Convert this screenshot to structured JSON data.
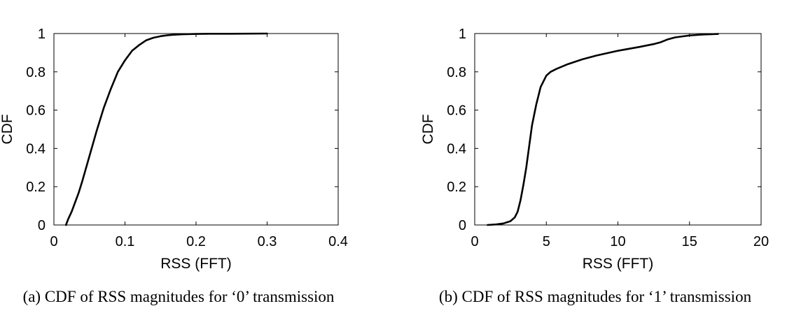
{
  "chart_data": [
    {
      "type": "line",
      "title": "",
      "caption": "(a)  CDF of RSS magnitudes for ‘0’ transmission",
      "xlabel": "RSS (FFT)",
      "ylabel": "CDF",
      "xlim": [
        0,
        0.4
      ],
      "ylim": [
        0,
        1
      ],
      "xticks": [
        "0",
        "0.1",
        "0.2",
        "0.3",
        "0.4"
      ],
      "yticks": [
        "0",
        "0.2",
        "0.4",
        "0.6",
        "0.8",
        "1"
      ],
      "grid": false,
      "line_color": "#000000",
      "x": [
        0.017,
        0.018,
        0.02,
        0.025,
        0.03,
        0.035,
        0.04,
        0.05,
        0.06,
        0.07,
        0.08,
        0.09,
        0.1,
        0.11,
        0.12,
        0.13,
        0.14,
        0.15,
        0.16,
        0.17,
        0.18,
        0.19,
        0.2,
        0.22,
        0.25,
        0.3
      ],
      "y": [
        0.0,
        0.01,
        0.03,
        0.07,
        0.12,
        0.17,
        0.23,
        0.36,
        0.49,
        0.61,
        0.71,
        0.8,
        0.86,
        0.91,
        0.94,
        0.965,
        0.978,
        0.986,
        0.991,
        0.994,
        0.996,
        0.997,
        0.998,
        0.999,
        0.999,
        1.0
      ]
    },
    {
      "type": "line",
      "title": "",
      "caption": "(b)  CDF of RSS magnitudes for ‘1’ transmission",
      "xlabel": "RSS (FFT)",
      "ylabel": "CDF",
      "xlim": [
        0,
        20
      ],
      "ylim": [
        0,
        1
      ],
      "xticks": [
        "0",
        "5",
        "10",
        "15",
        "20"
      ],
      "yticks": [
        "0",
        "0.2",
        "0.4",
        "0.6",
        "0.8",
        "1"
      ],
      "grid": false,
      "line_color": "#000000",
      "x": [
        0.9,
        1.5,
        2.0,
        2.5,
        2.8,
        3.0,
        3.2,
        3.4,
        3.6,
        3.8,
        4.0,
        4.3,
        4.6,
        5.0,
        5.3,
        5.7,
        6.5,
        7.5,
        8.5,
        10.0,
        11.5,
        12.5,
        13.0,
        13.5,
        14.0,
        15.0,
        16.0,
        17.0
      ],
      "y": [
        0.0,
        0.003,
        0.008,
        0.02,
        0.04,
        0.07,
        0.13,
        0.21,
        0.3,
        0.41,
        0.52,
        0.63,
        0.72,
        0.78,
        0.8,
        0.815,
        0.84,
        0.865,
        0.885,
        0.91,
        0.93,
        0.945,
        0.955,
        0.97,
        0.98,
        0.99,
        0.995,
        0.998
      ]
    }
  ]
}
